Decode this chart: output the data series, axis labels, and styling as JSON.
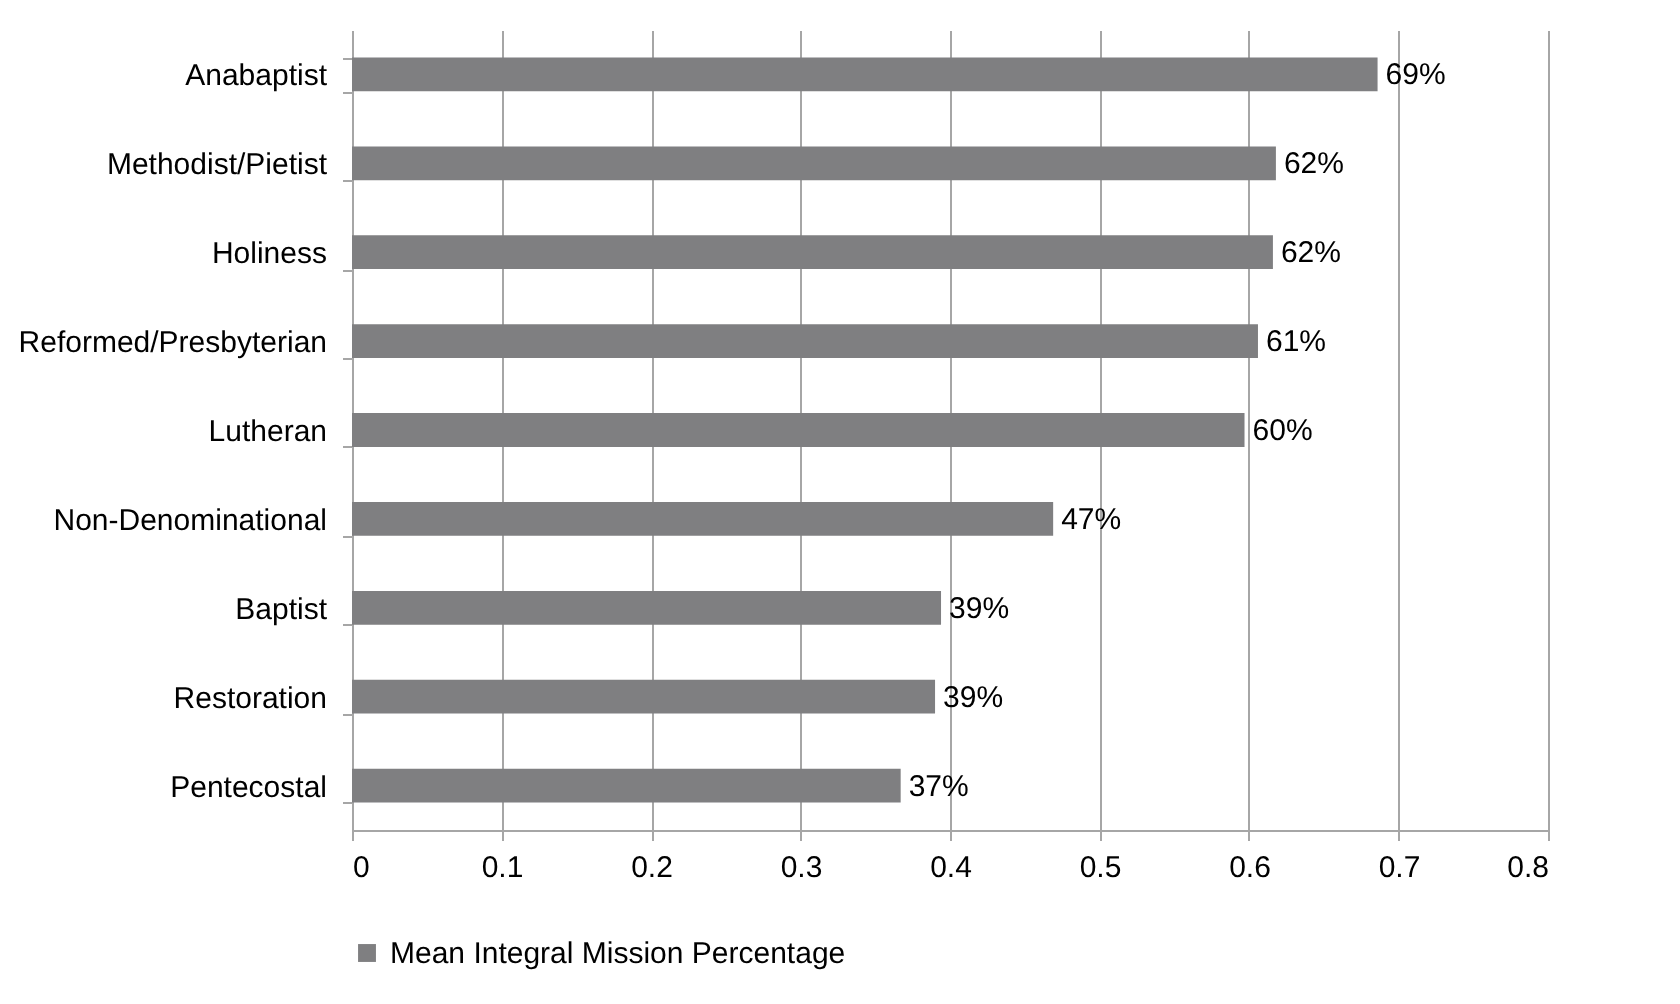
{
  "chart_data": {
    "type": "bar",
    "orientation": "horizontal",
    "categories": [
      "Anabaptist",
      "Methodist/Pietist",
      "Holiness",
      "Reformed/Presbyterian",
      "Lutheran",
      "Non-Denominational",
      "Baptist",
      "Restoration",
      "Pentecostal"
    ],
    "series": [
      {
        "name": "Mean Integral Mission Percentage",
        "color": "#7f7f81",
        "values": [
          0.686,
          0.618,
          0.616,
          0.606,
          0.597,
          0.469,
          0.394,
          0.39,
          0.367
        ],
        "value_labels": [
          "69%",
          "62%",
          "62%",
          "61%",
          "60%",
          "47%",
          "39%",
          "39%",
          "37%"
        ]
      }
    ],
    "xlim": [
      0,
      0.8
    ],
    "xticks": [
      0,
      0.1,
      0.2,
      0.3,
      0.4,
      0.5,
      0.6,
      0.7,
      0.8
    ],
    "grid": "x",
    "legend": "bottom"
  }
}
